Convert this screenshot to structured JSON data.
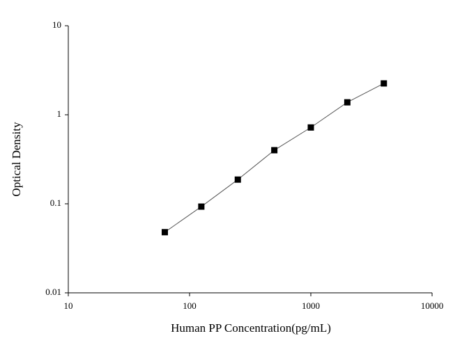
{
  "chart_data": {
    "type": "line",
    "x_label": "Human PP Concentration(pg/mL)",
    "y_label": "Optical Density",
    "x": [
      62.5,
      125,
      250,
      500,
      1000,
      2000,
      4000
    ],
    "series": [
      {
        "color": "#000000",
        "values": [
          0.048,
          0.093,
          0.187,
          0.4,
          0.72,
          1.38,
          2.25
        ]
      }
    ],
    "x_log": true,
    "y_log": true,
    "xlim": [
      10,
      10000
    ],
    "xticks": [
      10,
      100,
      1000,
      10000
    ],
    "ylim": [
      0.01,
      10
    ],
    "yticks": [
      0.01,
      0.1,
      1,
      10
    ]
  }
}
